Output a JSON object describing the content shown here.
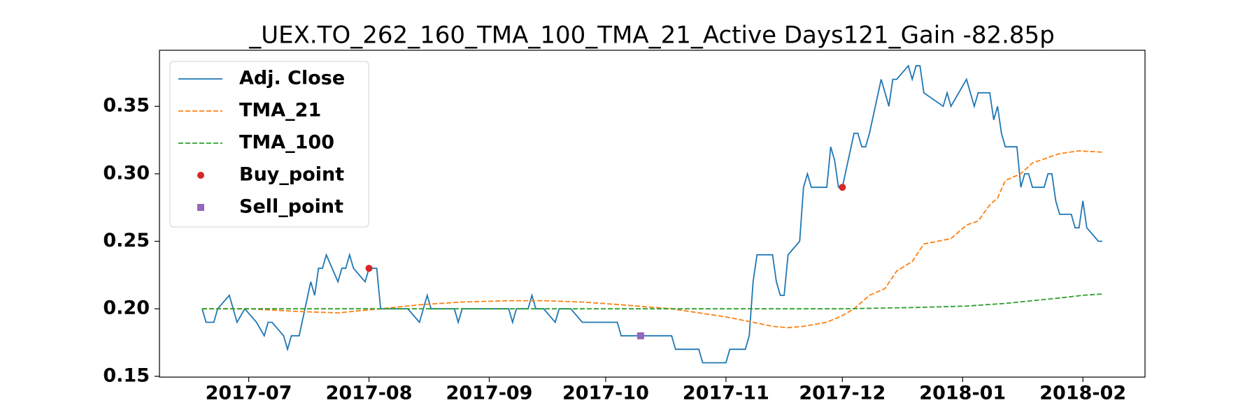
{
  "chart_data": {
    "type": "line",
    "title": "_UEX.TO_262_160_TMA_100_TMA_21_Active Days121_Gain -82.85p",
    "xlim": [
      "2017-06-08",
      "2018-02-17"
    ],
    "ylim": [
      0.1494,
      0.3915
    ],
    "xticks": [
      {
        "value": "2017-07-01",
        "label": "2017-07"
      },
      {
        "value": "2017-08-01",
        "label": "2017-08"
      },
      {
        "value": "2017-09-01",
        "label": "2017-09"
      },
      {
        "value": "2017-10-01",
        "label": "2017-10"
      },
      {
        "value": "2017-11-01",
        "label": "2017-11"
      },
      {
        "value": "2017-12-01",
        "label": "2017-12"
      },
      {
        "value": "2018-01-01",
        "label": "2018-01"
      },
      {
        "value": "2018-02-01",
        "label": "2018-02"
      }
    ],
    "yticks": [
      0.15,
      {
        "value": 0.2,
        "label": "0.20"
      },
      0.25,
      {
        "value": 0.3,
        "label": "0.30"
      },
      0.35
    ],
    "legend": "upper left",
    "series": [
      {
        "name": "Adj. Close",
        "color": "#1f77b4",
        "style": "solid",
        "marker": "none",
        "x": [
          "2017-06-19",
          "2017-06-20",
          "2017-06-22",
          "2017-06-23",
          "2017-06-26",
          "2017-06-27",
          "2017-06-28",
          "2017-06-30",
          "2017-07-03",
          "2017-07-05",
          "2017-07-06",
          "2017-07-07",
          "2017-07-10",
          "2017-07-11",
          "2017-07-12",
          "2017-07-14",
          "2017-07-17",
          "2017-07-18",
          "2017-07-19",
          "2017-07-20",
          "2017-07-21",
          "2017-07-24",
          "2017-07-25",
          "2017-07-26",
          "2017-07-27",
          "2017-07-28",
          "2017-07-31",
          "2017-08-01",
          "2017-08-03",
          "2017-08-04",
          "2017-08-11",
          "2017-08-14",
          "2017-08-16",
          "2017-08-17",
          "2017-08-23",
          "2017-08-24",
          "2017-08-25",
          "2017-09-06",
          "2017-09-07",
          "2017-09-08",
          "2017-09-11",
          "2017-09-12",
          "2017-09-13",
          "2017-09-15",
          "2017-09-18",
          "2017-09-19",
          "2017-09-22",
          "2017-09-25",
          "2017-10-04",
          "2017-10-05",
          "2017-10-18",
          "2017-10-19",
          "2017-10-25",
          "2017-10-26",
          "2017-11-01",
          "2017-11-02",
          "2017-11-06",
          "2017-11-07",
          "2017-11-08",
          "2017-11-09",
          "2017-11-13",
          "2017-11-14",
          "2017-11-15",
          "2017-11-16",
          "2017-11-17",
          "2017-11-20",
          "2017-11-21",
          "2017-11-22",
          "2017-11-23",
          "2017-11-27",
          "2017-11-28",
          "2017-11-29",
          "2017-11-30",
          "2017-12-01",
          "2017-12-04",
          "2017-12-05",
          "2017-12-06",
          "2017-12-07",
          "2017-12-08",
          "2017-12-11",
          "2017-12-13",
          "2017-12-14",
          "2017-12-15",
          "2017-12-18",
          "2017-12-19",
          "2017-12-20",
          "2017-12-21",
          "2017-12-22",
          "2017-12-27",
          "2017-12-28",
          "2017-12-29",
          "2018-01-02",
          "2018-01-04",
          "2018-01-05",
          "2018-01-08",
          "2018-01-09",
          "2018-01-10",
          "2018-01-11",
          "2018-01-12",
          "2018-01-15",
          "2018-01-16",
          "2018-01-17",
          "2018-01-18",
          "2018-01-19",
          "2018-01-22",
          "2018-01-23",
          "2018-01-24",
          "2018-01-25",
          "2018-01-26",
          "2018-01-29",
          "2018-01-30",
          "2018-01-31",
          "2018-02-01",
          "2018-02-02",
          "2018-02-05",
          "2018-02-06"
        ],
        "values": [
          0.2,
          0.19,
          0.19,
          0.2,
          0.21,
          0.2,
          0.19,
          0.2,
          0.19,
          0.18,
          0.19,
          0.19,
          0.18,
          0.17,
          0.18,
          0.18,
          0.22,
          0.21,
          0.23,
          0.23,
          0.24,
          0.22,
          0.23,
          0.23,
          0.24,
          0.23,
          0.22,
          0.23,
          0.23,
          0.2,
          0.2,
          0.19,
          0.21,
          0.2,
          0.2,
          0.19,
          0.2,
          0.2,
          0.19,
          0.2,
          0.2,
          0.21,
          0.2,
          0.2,
          0.19,
          0.2,
          0.2,
          0.19,
          0.19,
          0.18,
          0.18,
          0.17,
          0.17,
          0.16,
          0.16,
          0.17,
          0.17,
          0.18,
          0.22,
          0.24,
          0.24,
          0.22,
          0.21,
          0.21,
          0.24,
          0.25,
          0.29,
          0.3,
          0.29,
          0.29,
          0.32,
          0.31,
          0.29,
          0.29,
          0.33,
          0.33,
          0.32,
          0.32,
          0.33,
          0.37,
          0.35,
          0.37,
          0.37,
          0.38,
          0.37,
          0.38,
          0.38,
          0.36,
          0.35,
          0.36,
          0.35,
          0.37,
          0.35,
          0.36,
          0.36,
          0.34,
          0.35,
          0.33,
          0.32,
          0.32,
          0.29,
          0.3,
          0.3,
          0.29,
          0.29,
          0.3,
          0.3,
          0.28,
          0.27,
          0.27,
          0.26,
          0.26,
          0.28,
          0.26,
          0.25,
          0.25
        ]
      },
      {
        "name": "TMA_21",
        "color": "#ff7f0e",
        "style": "dashed",
        "marker": "none",
        "x": [
          "2017-06-19",
          "2017-07-01",
          "2017-07-14",
          "2017-07-24",
          "2017-08-04",
          "2017-08-14",
          "2017-08-25",
          "2017-09-06",
          "2017-09-15",
          "2017-09-25",
          "2017-10-05",
          "2017-10-18",
          "2017-10-25",
          "2017-11-01",
          "2017-11-08",
          "2017-11-13",
          "2017-11-17",
          "2017-11-21",
          "2017-11-27",
          "2017-12-01",
          "2017-12-04",
          "2017-12-08",
          "2017-12-12",
          "2017-12-15",
          "2017-12-19",
          "2017-12-22",
          "2017-12-29",
          "2018-01-02",
          "2018-01-05",
          "2018-01-08",
          "2018-01-10",
          "2018-01-12",
          "2018-01-16",
          "2018-01-19",
          "2018-01-23",
          "2018-01-26",
          "2018-01-31",
          "2018-02-06"
        ],
        "values": [
          0.2,
          0.2,
          0.198,
          0.197,
          0.2,
          0.203,
          0.205,
          0.206,
          0.206,
          0.205,
          0.203,
          0.2,
          0.197,
          0.194,
          0.19,
          0.187,
          0.186,
          0.187,
          0.19,
          0.195,
          0.2,
          0.21,
          0.215,
          0.228,
          0.235,
          0.248,
          0.252,
          0.262,
          0.265,
          0.277,
          0.282,
          0.295,
          0.3,
          0.308,
          0.312,
          0.315,
          0.317,
          0.316
        ]
      },
      {
        "name": "TMA_100",
        "color": "#2ca02c",
        "style": "dashed",
        "marker": "none",
        "x": [
          "2017-06-19",
          "2017-09-01",
          "2017-12-01",
          "2017-12-20",
          "2018-01-02",
          "2018-01-12",
          "2018-01-19",
          "2018-01-26",
          "2018-02-01",
          "2018-02-06"
        ],
        "values": [
          0.2,
          0.2,
          0.2,
          0.201,
          0.202,
          0.204,
          0.206,
          0.208,
          0.21,
          0.211
        ]
      },
      {
        "name": "Buy_point",
        "color": "#d62728",
        "style": "none",
        "marker": "circle",
        "x": [
          "2017-08-01",
          "2017-12-01"
        ],
        "values": [
          0.23,
          0.29
        ]
      },
      {
        "name": "Sell_point",
        "color": "#9467bd",
        "style": "none",
        "marker": "square",
        "x": [
          "2017-10-10"
        ],
        "values": [
          0.18
        ]
      }
    ]
  }
}
